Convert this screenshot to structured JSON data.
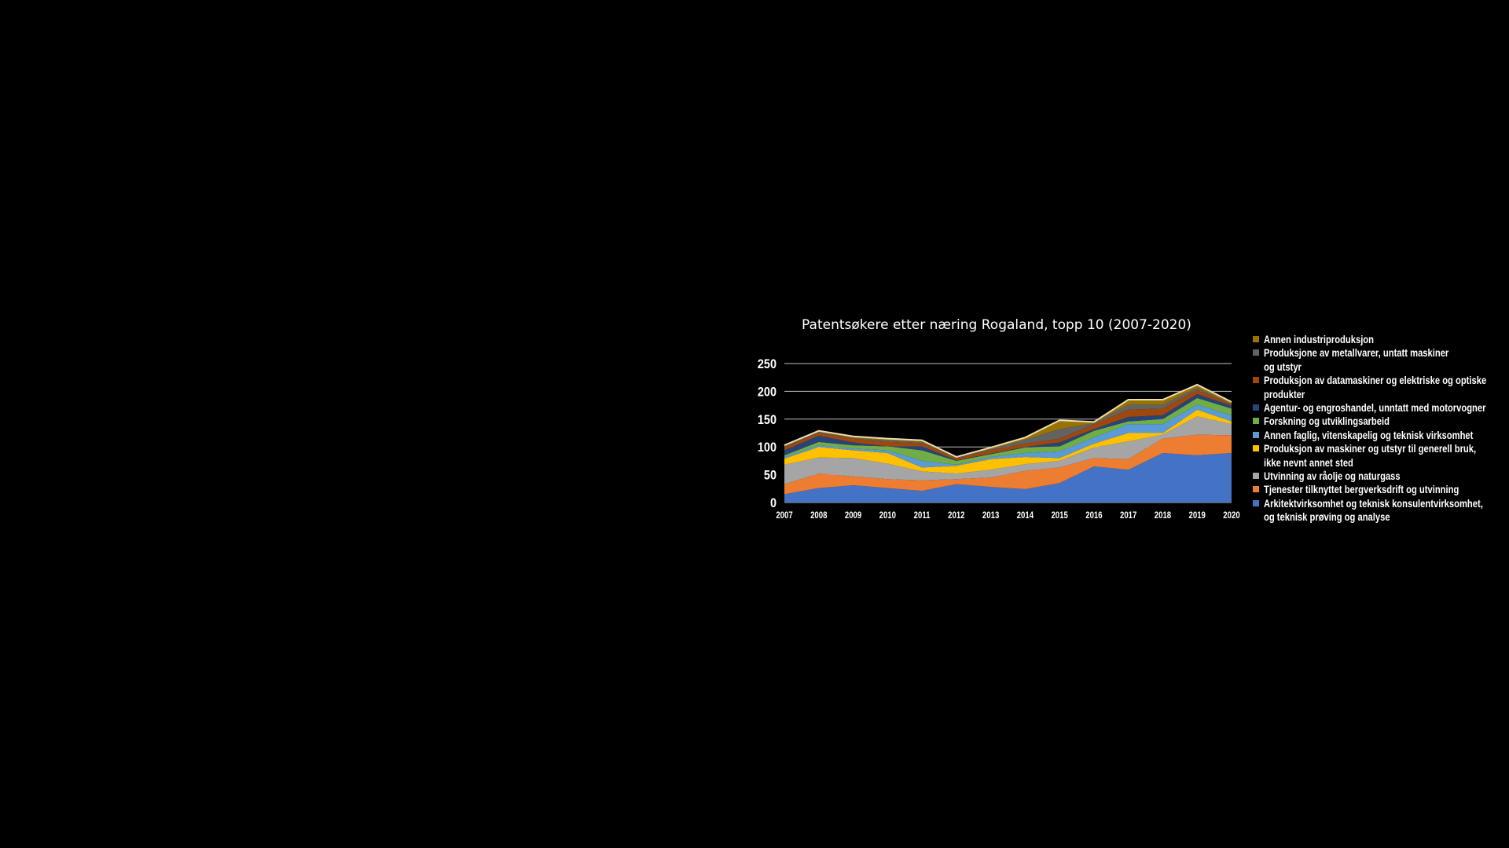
{
  "chart_data": {
    "type": "area",
    "stacked": true,
    "title": "Patentsøkere etter næring Rogaland, topp 10 (2007-2020)",
    "xlabel": "",
    "ylabel": "",
    "ylim": [
      0,
      250
    ],
    "yticks": [
      "0",
      "50",
      "100",
      "150",
      "200",
      "250"
    ],
    "grid": true,
    "legend_position": "right",
    "categories": [
      "2007",
      "2008",
      "2009",
      "2010",
      "2011",
      "2012",
      "2013",
      "2014",
      "2015",
      "2016",
      "2017",
      "2018",
      "2019",
      "2020"
    ],
    "series": [
      {
        "name": "Arkitektvirksomhet og teknisk konsulentvirksomhet, og teknisk prøving og analyse",
        "lines": [
          "Arkitektvirksomhet og teknisk konsulentvirksomhet,",
          "og teknisk prøving og analyse"
        ],
        "color": "#4472c4",
        "values": [
          15,
          26,
          31,
          26,
          21,
          33,
          28,
          24,
          35,
          65,
          59,
          89,
          85,
          89
        ]
      },
      {
        "name": "Tjenester tilknyttet bergverksdrift og utvinning",
        "lines": [
          "Tjenester tilknyttet bergverksdrift og utvinning"
        ],
        "color": "#ed7d31",
        "values": [
          18,
          26,
          16,
          16,
          19,
          9,
          17,
          33,
          28,
          15,
          19,
          26,
          37,
          32
        ]
      },
      {
        "name": "Utvinning av råolje og naturgass",
        "lines": [
          "Utvinning av råolje og naturgass"
        ],
        "color": "#a5a5a5",
        "values": [
          35,
          29,
          33,
          28,
          16,
          10,
          14,
          12,
          12,
          19,
          32,
          7,
          33,
          20
        ]
      },
      {
        "name": "Produksjon av maskiner og utstyr til generell bruk, ikke nevnt annet sted",
        "lines": [
          "Produksjon av maskiner og utstyr til generell bruk,",
          "ikke nevnt annet sted"
        ],
        "color": "#ffc000",
        "values": [
          11,
          19,
          14,
          19,
          7,
          14,
          19,
          13,
          5,
          7,
          15,
          3,
          12,
          5
        ]
      },
      {
        "name": "Annen faglig, vitenskapelig og teknisk virksomhet",
        "lines": [
          "Annen faglig, vitenskapelig og teknisk virksomhet"
        ],
        "color": "#5b9bd5",
        "values": [
          3,
          3,
          3,
          5,
          12,
          2,
          4,
          7,
          12,
          11,
          16,
          16,
          9,
          11
        ]
      },
      {
        "name": "Forskning og utviklingsarbeid",
        "lines": [
          "Forskning og utviklingsarbeid"
        ],
        "color": "#70ad47",
        "values": [
          3,
          6,
          6,
          7,
          19,
          7,
          5,
          10,
          9,
          12,
          5,
          9,
          12,
          12
        ]
      },
      {
        "name": "Agentur- og engroshandel, unntatt med motorvogner",
        "lines": [
          "Agentur- og engroshandel, unntatt med motorvogner"
        ],
        "color": "#264478",
        "values": [
          9,
          11,
          5,
          0,
          7,
          1,
          1,
          1,
          7,
          3,
          8,
          7,
          7,
          5
        ]
      },
      {
        "name": "Produksjon av datamaskiner og elektriske og optiske produkter",
        "lines": [
          "Produksjon av datamaskiner og elektriske og optiske",
          "produkter"
        ],
        "color": "#9e480e",
        "values": [
          6,
          5,
          7,
          8,
          6,
          4,
          6,
          6,
          7,
          9,
          13,
          12,
          8,
          2
        ]
      },
      {
        "name": "Produksjone av metallvarer, untatt maskiner og utstyr",
        "lines": [
          "Produksjone av metallvarer, untatt maskiner",
          "og utstyr"
        ],
        "color": "#636363",
        "values": [
          1,
          2,
          1,
          3,
          2,
          1,
          2,
          7,
          17,
          2,
          9,
          7,
          4,
          1
        ]
      },
      {
        "name": "Annen industriproduksjon",
        "lines": [
          "Annen industriproduksjon"
        ],
        "color": "#997300",
        "values": [
          2,
          2,
          3,
          3,
          3,
          1,
          3,
          4,
          16,
          2,
          9,
          9,
          5,
          4
        ]
      }
    ]
  }
}
